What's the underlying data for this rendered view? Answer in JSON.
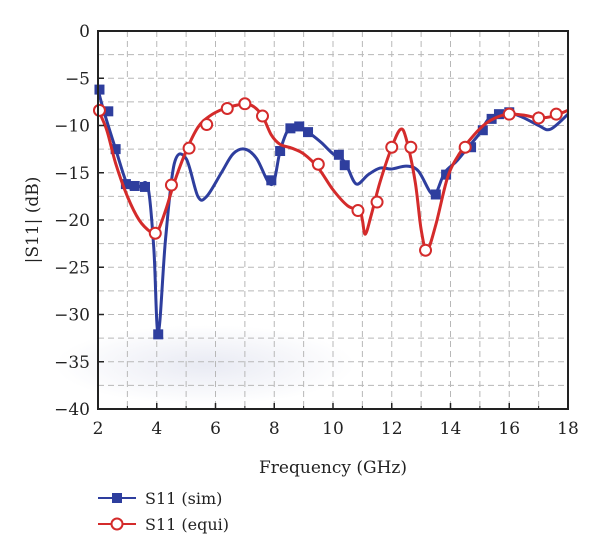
{
  "chart_data": {
    "type": "line",
    "xlabel": "Frequency (GHz)",
    "ylabel": "|S11| (dB)",
    "xlim": [
      2,
      18
    ],
    "ylim": [
      -40,
      0
    ],
    "xticks": [
      2,
      4,
      6,
      8,
      10,
      12,
      14,
      16,
      18
    ],
    "yticks": [
      0,
      -5,
      -10,
      -15,
      -20,
      -25,
      -30,
      -35,
      -40
    ],
    "grid": true,
    "legend_position": "bottom-left",
    "series": [
      {
        "name": "S11 (sim)",
        "color": "#2e3e9e",
        "marker": "filled-square",
        "x": [
          2.0,
          2.2,
          2.6,
          3.0,
          3.2,
          3.4,
          3.7,
          3.9,
          4.05,
          4.3,
          4.6,
          5.0,
          5.4,
          5.7,
          6.2,
          6.6,
          7.0,
          7.4,
          7.8,
          8.0,
          8.2,
          8.5,
          8.8,
          9.0,
          9.2,
          9.6,
          10.0,
          10.3,
          10.5,
          10.8,
          11.2,
          11.6,
          12.0,
          12.5,
          12.9,
          13.3,
          13.5,
          13.8,
          14.2,
          14.6,
          15.0,
          15.3,
          15.7,
          16.0,
          16.5,
          17.0,
          17.4,
          18.0
        ],
        "y": [
          -6.2,
          -8.5,
          -12.5,
          -16.3,
          -16.4,
          -16.5,
          -16.5,
          -23.0,
          -32.0,
          -22.0,
          -14.0,
          -13.5,
          -17.5,
          -17.5,
          -15.0,
          -13.0,
          -12.5,
          -13.5,
          -16.0,
          -15.8,
          -12.7,
          -10.3,
          -10.1,
          -10.4,
          -10.8,
          -11.8,
          -13.0,
          -13.5,
          -14.5,
          -16.2,
          -15.2,
          -14.5,
          -14.6,
          -14.3,
          -14.8,
          -17.0,
          -17.2,
          -15.0,
          -13.8,
          -12.3,
          -10.8,
          -9.3,
          -8.7,
          -8.6,
          -9.2,
          -10.0,
          -10.4,
          -8.8
        ],
        "markers": [
          [
            2.05,
            -6.2
          ],
          [
            2.35,
            -8.5
          ],
          [
            2.6,
            -12.5
          ],
          [
            2.95,
            -16.2
          ],
          [
            3.25,
            -16.4
          ],
          [
            3.6,
            -16.5
          ],
          [
            4.05,
            -32.1
          ],
          [
            7.9,
            -15.8
          ],
          [
            8.2,
            -12.7
          ],
          [
            8.55,
            -10.3
          ],
          [
            8.85,
            -10.1
          ],
          [
            9.15,
            -10.7
          ],
          [
            10.2,
            -13.1
          ],
          [
            10.4,
            -14.2
          ],
          [
            13.5,
            -17.3
          ],
          [
            13.85,
            -15.2
          ],
          [
            14.7,
            -12.3
          ],
          [
            15.1,
            -10.5
          ],
          [
            15.4,
            -9.3
          ],
          [
            15.65,
            -8.8
          ],
          [
            16.0,
            -8.6
          ]
        ]
      },
      {
        "name": "S11 (equi)",
        "color": "#d42b2b",
        "marker": "open-circle",
        "x": [
          2.0,
          2.3,
          2.6,
          3.0,
          3.4,
          3.8,
          4.0,
          4.3,
          4.6,
          5.0,
          5.4,
          5.8,
          6.3,
          6.8,
          7.0,
          7.3,
          7.6,
          7.9,
          8.2,
          8.6,
          9.0,
          9.5,
          10.0,
          10.5,
          10.9,
          11.0,
          11.1,
          11.3,
          11.6,
          12.0,
          12.3,
          12.5,
          12.8,
          13.0,
          13.2,
          13.5,
          13.9,
          14.3,
          14.8,
          15.2,
          15.6,
          16.0,
          16.5,
          17.0,
          17.5,
          18.0
        ],
        "y": [
          -8.3,
          -10.5,
          -14.0,
          -17.5,
          -20.0,
          -21.3,
          -21.4,
          -19.0,
          -16.0,
          -12.7,
          -10.2,
          -9.0,
          -8.2,
          -7.8,
          -7.7,
          -8.0,
          -9.0,
          -11.0,
          -12.0,
          -12.4,
          -13.0,
          -14.5,
          -16.8,
          -18.5,
          -19.0,
          -20.0,
          -21.5,
          -19.5,
          -16.0,
          -12.3,
          -10.4,
          -11.5,
          -16.0,
          -21.0,
          -23.2,
          -20.5,
          -15.5,
          -13.0,
          -11.0,
          -9.8,
          -9.1,
          -8.8,
          -8.9,
          -9.2,
          -9.0,
          -8.4
        ],
        "markers": [
          [
            2.05,
            -8.4
          ],
          [
            3.95,
            -21.4
          ],
          [
            4.5,
            -16.3
          ],
          [
            5.1,
            -12.4
          ],
          [
            5.7,
            -9.9
          ],
          [
            6.4,
            -8.2
          ],
          [
            7.0,
            -7.7
          ],
          [
            7.6,
            -9.0
          ],
          [
            9.5,
            -14.1
          ],
          [
            10.85,
            -19.0
          ],
          [
            11.5,
            -18.1
          ],
          [
            12.0,
            -12.3
          ],
          [
            12.65,
            -12.3
          ],
          [
            13.15,
            -23.2
          ],
          [
            14.5,
            -12.3
          ],
          [
            16.0,
            -8.8
          ],
          [
            17.0,
            -9.2
          ],
          [
            17.6,
            -8.8
          ]
        ]
      }
    ]
  }
}
